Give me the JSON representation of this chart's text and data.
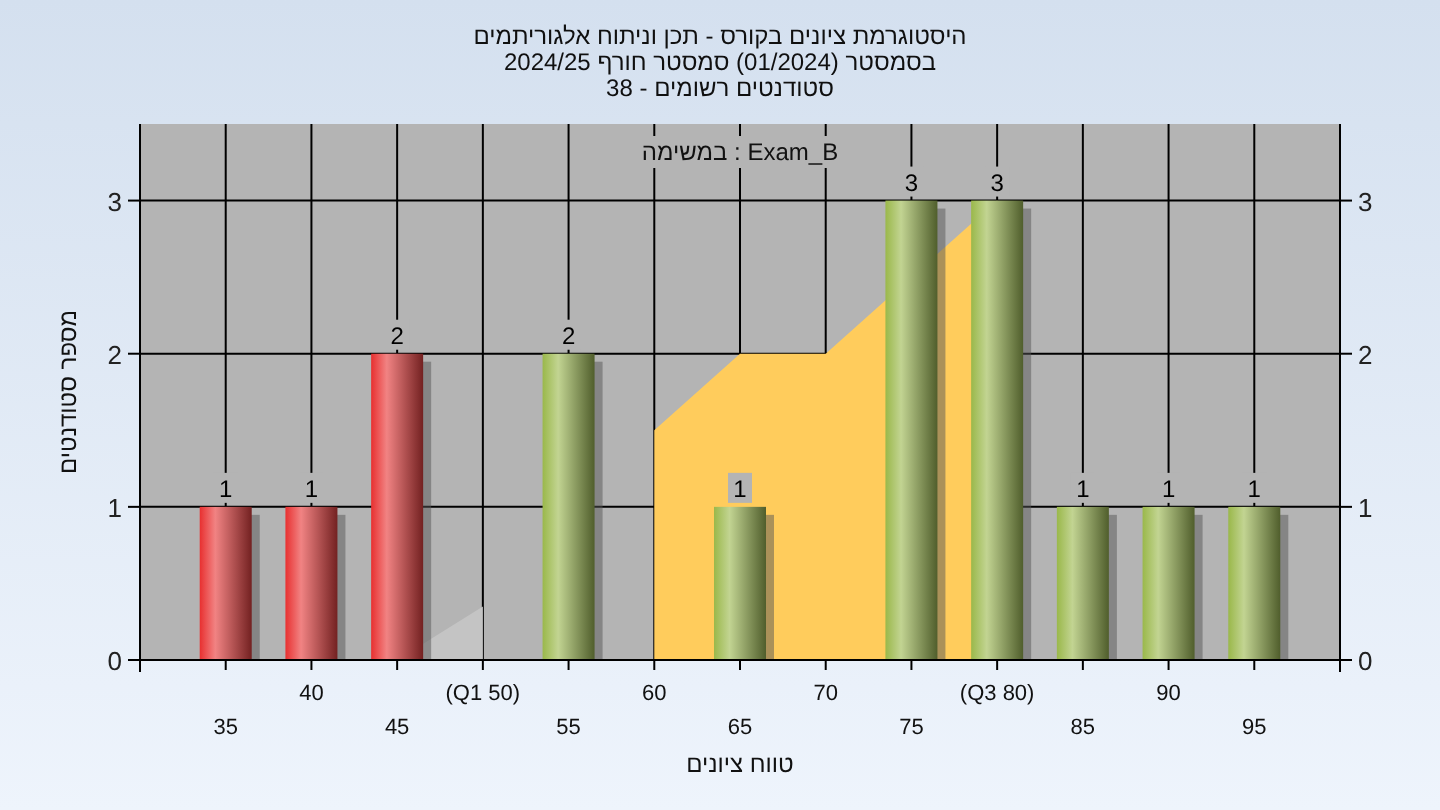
{
  "chart_data": {
    "type": "bar",
    "title": "היסטוגרמת ציונים בקורס - תכן וניתוח אלגוריתמים",
    "subtitle": "בסמסטר (01/2024) סמסטר חורף 2024/25\nסטודנטים רשומים - 38",
    "xlabel": "טווח ציונים",
    "ylabel": "מספר סטודנטים",
    "annotations": [
      "במשימה : Exam_B"
    ],
    "categories": [
      "35",
      "40",
      "45",
      "(Q1 50)",
      "55",
      "60",
      "65",
      "70",
      "75",
      "(Q3 80)",
      "85",
      "90",
      "95"
    ],
    "series": [
      {
        "type": "area",
        "color": "#c4c4c4",
        "values": [
          null,
          null,
          0,
          0.35,
          null,
          null,
          null,
          null,
          null,
          null,
          null,
          null,
          null
        ]
      },
      {
        "type": "area",
        "color": "#ffcc5c",
        "values": [
          null,
          null,
          null,
          null,
          null,
          1.5,
          2,
          2,
          null,
          3,
          null,
          null,
          null
        ]
      },
      {
        "colors": [
          "#e83030",
          "#e83030",
          "#e83030",
          "#9ab84a",
          "#9ab84a",
          "#9ab84a",
          "#9ab84a",
          "#9ab84a",
          "#9ab84a",
          "#9ab84a",
          "#9ab84a",
          "#9ab84a",
          "#9ab84a"
        ],
        "values": [
          1,
          1,
          2,
          0,
          2,
          0,
          1,
          0,
          3,
          3,
          1,
          1,
          1
        ],
        "value_labels": [
          "1",
          "1",
          "2",
          null,
          "2",
          null,
          "1",
          null,
          "3",
          "3",
          "1",
          "1",
          "1"
        ]
      }
    ],
    "ylim": [
      0,
      3.5
    ],
    "yticks": [
      0,
      1,
      2,
      3
    ],
    "y2lim": [
      0,
      3.5
    ],
    "y2ticks": [
      0,
      1,
      2,
      3
    ],
    "grid": true
  }
}
